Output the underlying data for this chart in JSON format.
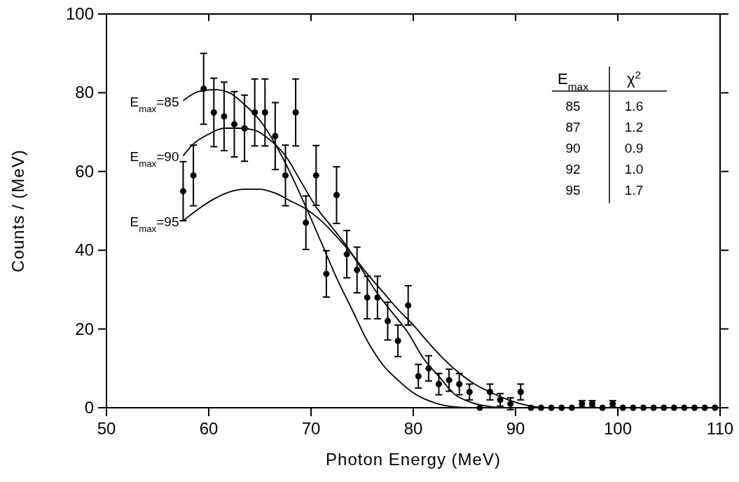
{
  "chart_data": {
    "type": "scatter",
    "xlabel": "Photon Energy (MeV)",
    "ylabel": "Counts / (MeV)",
    "xlim": [
      50,
      110
    ],
    "xticks": [
      50,
      60,
      70,
      80,
      90,
      100,
      110
    ],
    "ylim": [
      0,
      100
    ],
    "yticks": [
      0,
      20,
      40,
      60,
      80,
      100
    ],
    "grid": false,
    "series": [
      {
        "marker": "circle",
        "color": "#000000",
        "x": [
          57.5,
          58.5,
          59.5,
          60.5,
          61.5,
          62.5,
          63.5,
          64.5,
          65.5,
          66.5,
          67.5,
          68.5,
          69.5,
          70.5,
          71.5,
          72.5,
          73.5,
          74.5,
          75.5,
          76.5,
          77.5,
          78.5,
          79.5,
          80.5,
          81.5,
          82.5,
          83.5,
          84.5,
          85.5,
          86.5,
          87.5,
          88.5,
          89.5,
          90.5,
          91.5,
          92.5,
          93.5,
          94.5,
          95.5,
          96.5,
          97.5,
          98.5,
          99.5,
          100.5,
          101.5,
          102.5,
          103.5,
          104.5,
          105.5,
          106.5,
          107.5,
          108.5,
          109.5
        ],
        "values": [
          55,
          59,
          81,
          75,
          74,
          72,
          71,
          75,
          75,
          69,
          59,
          75,
          47,
          59,
          34,
          54,
          39,
          35,
          28,
          28,
          22,
          17,
          26,
          8,
          10,
          6,
          7,
          6,
          4,
          0,
          4,
          2,
          1,
          4,
          0,
          0,
          0,
          0,
          0,
          1,
          1,
          0,
          1,
          0,
          0,
          0,
          0,
          0,
          0,
          0,
          0,
          0,
          0
        ],
        "errors": [
          7.5,
          7.7,
          9,
          8.7,
          8.7,
          8.3,
          8.4,
          8.5,
          8.5,
          8.5,
          7.7,
          8.5,
          6.8,
          7.6,
          5.9,
          7.2,
          6,
          5.8,
          5.4,
          5.4,
          4.8,
          4,
          5,
          3,
          3.2,
          2.7,
          2.8,
          2.7,
          2,
          null,
          2,
          1.6,
          1.5,
          2,
          null,
          null,
          null,
          null,
          null,
          0.8,
          0.8,
          null,
          0.8,
          null,
          null,
          null,
          null,
          null,
          null,
          null,
          null,
          null,
          null
        ]
      },
      {
        "type": "line",
        "name": "E$_{max}$=85",
        "color": "#000000",
        "x": [
          57.5,
          59,
          60.5,
          62,
          63.5,
          65,
          66.5,
          68,
          69.5,
          71,
          72.5,
          74,
          75.5,
          77,
          78.5,
          80,
          81.5,
          83,
          84.5,
          86,
          92
        ],
        "values": [
          78,
          80.3,
          80.8,
          80,
          77,
          73,
          67,
          59.5,
          51,
          42,
          33,
          25,
          17,
          11,
          7,
          3.8,
          1.8,
          0.6,
          0.1,
          0,
          0
        ]
      },
      {
        "type": "line",
        "name": "E$_{max}$=90",
        "color": "#000000",
        "x": [
          57.5,
          58.5,
          60,
          61.5,
          63,
          64.5,
          66,
          67.5,
          69,
          70.5,
          72,
          73.5,
          75,
          76.5,
          78,
          79.5,
          81,
          82.5,
          84,
          85.5,
          87,
          88.7,
          92
        ],
        "values": [
          64,
          67,
          69.5,
          71,
          71,
          70.5,
          68,
          64,
          57.5,
          51,
          46,
          41,
          35,
          29,
          24,
          19,
          12.5,
          8,
          3.5,
          1.5,
          0.5,
          0,
          0
        ]
      },
      {
        "type": "line",
        "name": "E$_{max}$=95",
        "color": "#000000",
        "x": [
          57.5,
          59,
          60.5,
          62,
          63.5,
          65,
          66.5,
          68,
          69.5,
          71,
          72.5,
          74,
          75.5,
          77,
          78.5,
          80,
          81.5,
          83,
          84.5,
          86,
          87.5,
          89,
          90.5,
          92,
          93
        ],
        "values": [
          47.5,
          50.5,
          53,
          54.8,
          55.5,
          55.5,
          54.5,
          52.5,
          50.5,
          47.5,
          43.5,
          39,
          34,
          29.5,
          25,
          21,
          16.5,
          12.3,
          8.8,
          6,
          4,
          2.3,
          1,
          0.2,
          0
        ]
      }
    ],
    "annotations": [
      "E$_{max}$",
      "χ$^{2}$",
      "85",
      "1.6",
      "87",
      "1.2",
      "90",
      "0.9",
      "92",
      "1.0",
      "95",
      "1.7"
    ]
  }
}
